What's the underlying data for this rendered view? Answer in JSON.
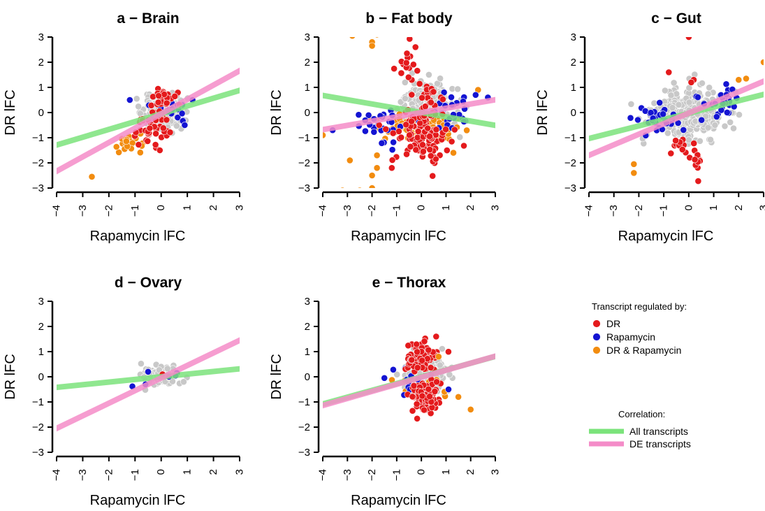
{
  "colors": {
    "DR": "#e41a1c",
    "Rapamycin": "#1414d2",
    "DR & Rapamycin": "#f28c0f",
    "Not DE": "#c8c8c8",
    "All transcripts": "#7be37b",
    "DE transcripts": "#f48cc8"
  },
  "legend": {
    "regulated_title": "Transcript regulated by:",
    "regulated_items": [
      "DR",
      "Rapamycin",
      "DR & Rapamycin"
    ],
    "correlation_title": "Correlation:",
    "correlation_items": [
      "All transcripts",
      "DE transcripts"
    ]
  },
  "chart_data": [
    {
      "type": "scatter",
      "title": "a − Brain",
      "xlabel": "Rapamycin lFC",
      "ylabel": "DR lFC",
      "xlim": [
        -4,
        3
      ],
      "ylim": [
        -3,
        3
      ],
      "xticks": [
        "−4",
        "−3",
        "−2",
        "−1",
        "0",
        "1",
        "2",
        "3"
      ],
      "yticks": [
        "−3",
        "−2",
        "−1",
        "0",
        "1",
        "2",
        "3"
      ],
      "regression_lines": [
        {
          "name": "All transcripts",
          "slope": 0.31,
          "intercept": -0.05
        },
        {
          "name": "DE transcripts",
          "slope": 0.57,
          "intercept": -0.05
        }
      ],
      "clusters": [
        {
          "group": "Not DE",
          "cx": 0.0,
          "cy": 0.0,
          "sx": 0.35,
          "sy": 0.32,
          "n": 220,
          "seed": 11
        },
        {
          "group": "DR",
          "cx": -0.35,
          "cy": -0.55,
          "sx": 0.3,
          "sy": 0.35,
          "n": 45,
          "seed": 12
        },
        {
          "group": "DR",
          "cx": 0.05,
          "cy": 0.55,
          "sx": 0.25,
          "sy": 0.18,
          "n": 25,
          "seed": 13
        },
        {
          "group": "Rapamycin",
          "cx": 0.3,
          "cy": 0.05,
          "sx": 0.45,
          "sy": 0.25,
          "n": 22,
          "seed": 14
        },
        {
          "group": "DR & Rapamycin",
          "cx": -1.2,
          "cy": -1.2,
          "sx": 0.3,
          "sy": 0.3,
          "n": 22,
          "seed": 15
        }
      ],
      "points": [
        {
          "group": "DR & Rapamycin",
          "x": -2.65,
          "y": -2.55
        },
        {
          "group": "DR",
          "x": -0.05,
          "y": -1.5
        },
        {
          "group": "Rapamycin",
          "x": -1.2,
          "y": 0.5
        },
        {
          "group": "Rapamycin",
          "x": 1.2,
          "y": 0.5
        },
        {
          "group": "Rapamycin",
          "x": 0.9,
          "y": -0.5
        }
      ]
    },
    {
      "type": "scatter",
      "title": "b − Fat body",
      "xlabel": "Rapamycin lFC",
      "ylabel": "DR lFC",
      "xlim": [
        -4,
        3
      ],
      "ylim": [
        -3,
        3
      ],
      "xticks": [
        "−4",
        "−3",
        "−2",
        "−1",
        "0",
        "1",
        "2",
        "3"
      ],
      "yticks": [
        "−3",
        "−2",
        "−1",
        "0",
        "1",
        "2",
        "3"
      ],
      "regression_lines": [
        {
          "name": "All transcripts",
          "slope": -0.17,
          "intercept": 0.0
        },
        {
          "name": "DE transcripts",
          "slope": 0.17,
          "intercept": 0.0
        }
      ],
      "clusters": [
        {
          "group": "Not DE",
          "cx": 0.2,
          "cy": 0.25,
          "sx": 0.55,
          "sy": 0.5,
          "n": 260,
          "seed": 21
        },
        {
          "group": "DR",
          "cx": 0.0,
          "cy": -0.85,
          "sx": 0.55,
          "sy": 0.5,
          "n": 110,
          "seed": 22
        },
        {
          "group": "DR",
          "cx": 0.1,
          "cy": 0.7,
          "sx": 0.35,
          "sy": 0.3,
          "n": 20,
          "seed": 23
        },
        {
          "group": "DR",
          "cx": -0.6,
          "cy": 2.0,
          "sx": 0.25,
          "sy": 0.45,
          "n": 18,
          "seed": 24
        },
        {
          "group": "DR & Rapamycin",
          "cx": 0.0,
          "cy": -0.6,
          "sx": 0.8,
          "sy": 0.3,
          "n": 90,
          "seed": 25
        },
        {
          "group": "Rapamycin",
          "cx": -1.5,
          "cy": -0.6,
          "sx": 0.7,
          "sy": 0.45,
          "n": 28,
          "seed": 26
        },
        {
          "group": "Rapamycin",
          "cx": 1.2,
          "cy": 0.0,
          "sx": 0.4,
          "sy": 0.45,
          "n": 25,
          "seed": 27
        }
      ],
      "points": [
        {
          "group": "DR & Rapamycin",
          "x": -2.8,
          "y": 3.05
        },
        {
          "group": "DR & Rapamycin",
          "x": -2.0,
          "y": 2.8
        },
        {
          "group": "DR & Rapamycin",
          "x": -2.0,
          "y": 2.65
        },
        {
          "group": "DR & Rapamycin",
          "x": -1.8,
          "y": 3.1
        },
        {
          "group": "DR & Rapamycin",
          "x": -3.2,
          "y": -3.1
        },
        {
          "group": "DR & Rapamycin",
          "x": -2.5,
          "y": -3.1
        },
        {
          "group": "DR & Rapamycin",
          "x": -2.0,
          "y": -3.0
        },
        {
          "group": "DR & Rapamycin",
          "x": -2.0,
          "y": -2.5
        },
        {
          "group": "DR & Rapamycin",
          "x": -1.8,
          "y": -2.2
        },
        {
          "group": "DR & Rapamycin",
          "x": -1.8,
          "y": -1.7
        },
        {
          "group": "DR & Rapamycin",
          "x": -2.9,
          "y": -1.9
        },
        {
          "group": "DR & Rapamycin",
          "x": -4.0,
          "y": -0.9
        },
        {
          "group": "DR & Rapamycin",
          "x": 2.3,
          "y": 0.9
        },
        {
          "group": "DR & Rapamycin",
          "x": 1.3,
          "y": -1.6
        },
        {
          "group": "Rapamycin",
          "x": -3.6,
          "y": -0.7
        },
        {
          "group": "Rapamycin",
          "x": 2.7,
          "y": 0.6
        },
        {
          "group": "Rapamycin",
          "x": 2.2,
          "y": 0.7
        },
        {
          "group": "DR",
          "x": -1.2,
          "y": -2.2
        }
      ]
    },
    {
      "type": "scatter",
      "title": "c − Gut",
      "xlabel": "Rapamycin lFC",
      "ylabel": "DR lFC",
      "xlim": [
        -4,
        3
      ],
      "ylim": [
        -3,
        3
      ],
      "xticks": [
        "−4",
        "−3",
        "−2",
        "−1",
        "0",
        "1",
        "2",
        "3"
      ],
      "yticks": [
        "−3",
        "−2",
        "−1",
        "0",
        "1",
        "2",
        "3"
      ],
      "regression_lines": [
        {
          "name": "All transcripts",
          "slope": 0.25,
          "intercept": -0.03
        },
        {
          "name": "DE transcripts",
          "slope": 0.42,
          "intercept": -0.02
        }
      ],
      "clusters": [
        {
          "group": "Not DE",
          "cx": 0.0,
          "cy": -0.05,
          "sx": 0.7,
          "sy": 0.5,
          "n": 340,
          "seed": 31
        },
        {
          "group": "Rapamycin",
          "cx": -1.2,
          "cy": -0.2,
          "sx": 0.5,
          "sy": 0.25,
          "n": 35,
          "seed": 32
        },
        {
          "group": "Rapamycin",
          "cx": 1.3,
          "cy": 0.4,
          "sx": 0.45,
          "sy": 0.3,
          "n": 30,
          "seed": 33
        },
        {
          "group": "DR",
          "cx": -0.3,
          "cy": -1.3,
          "sx": 0.4,
          "sy": 0.2,
          "n": 14,
          "seed": 34
        },
        {
          "group": "DR",
          "cx": 0.35,
          "cy": -2.0,
          "sx": 0.1,
          "sy": 0.35,
          "n": 10,
          "seed": 35
        }
      ],
      "points": [
        {
          "group": "DR",
          "x": 0.0,
          "y": 3.0
        },
        {
          "group": "DR",
          "x": -0.8,
          "y": 1.6
        },
        {
          "group": "DR",
          "x": 0.2,
          "y": 1.3
        },
        {
          "group": "DR",
          "x": 0.1,
          "y": 1.2
        },
        {
          "group": "DR & Rapamycin",
          "x": -2.2,
          "y": -2.05
        },
        {
          "group": "DR & Rapamycin",
          "x": -2.2,
          "y": -2.4
        },
        {
          "group": "DR & Rapamycin",
          "x": 2.3,
          "y": 1.35
        },
        {
          "group": "DR & Rapamycin",
          "x": 3.0,
          "y": 2.0
        },
        {
          "group": "DR & Rapamycin",
          "x": 2.0,
          "y": 1.3
        }
      ]
    },
    {
      "type": "scatter",
      "title": "d − Ovary",
      "xlabel": "Rapamycin lFC",
      "ylabel": "DR lFC",
      "xlim": [
        -4,
        3
      ],
      "ylim": [
        -3,
        3
      ],
      "xticks": [
        "−4",
        "−3",
        "−2",
        "−1",
        "0",
        "1",
        "2",
        "3"
      ],
      "yticks": [
        "−3",
        "−2",
        "−1",
        "0",
        "1",
        "2",
        "3"
      ],
      "regression_lines": [
        {
          "name": "All transcripts",
          "slope": 0.105,
          "intercept": -0.0
        },
        {
          "name": "DE transcripts",
          "slope": 0.5,
          "intercept": -0.05
        }
      ],
      "clusters": [
        {
          "group": "Not DE",
          "cx": 0.0,
          "cy": 0.05,
          "sx": 0.3,
          "sy": 0.17,
          "n": 150,
          "seed": 41
        }
      ],
      "points": [
        {
          "group": "Rapamycin",
          "x": -1.1,
          "y": -0.38
        },
        {
          "group": "Rapamycin",
          "x": -0.5,
          "y": 0.2
        },
        {
          "group": "Rapamycin",
          "x": -0.6,
          "y": -0.3
        },
        {
          "group": "Rapamycin",
          "x": 0.6,
          "y": 0.15
        },
        {
          "group": "Rapamycin",
          "x": 0.55,
          "y": 0.05
        },
        {
          "group": "Rapamycin",
          "x": 0.3,
          "y": 0.0
        },
        {
          "group": "DR",
          "x": 0.05,
          "y": 0.1
        }
      ]
    },
    {
      "type": "scatter",
      "title": "e − Thorax",
      "xlabel": "Rapamycin lFC",
      "ylabel": "DR lFC",
      "xlim": [
        -4,
        3
      ],
      "ylim": [
        -3,
        3
      ],
      "xticks": [
        "−4",
        "−3",
        "−2",
        "−1",
        "0",
        "1",
        "2",
        "3"
      ],
      "yticks": [
        "−3",
        "−2",
        "−1",
        "0",
        "1",
        "2",
        "3"
      ],
      "regression_lines": [
        {
          "name": "All transcripts",
          "slope": 0.27,
          "intercept": 0.0
        },
        {
          "name": "DE transcripts",
          "slope": 0.28,
          "intercept": -0.02
        }
      ],
      "clusters": [
        {
          "group": "Not DE",
          "cx": 0.1,
          "cy": 0.05,
          "sx": 0.4,
          "sy": 0.4,
          "n": 230,
          "seed": 51
        },
        {
          "group": "DR",
          "cx": 0.1,
          "cy": 0.8,
          "sx": 0.3,
          "sy": 0.3,
          "n": 75,
          "seed": 52
        },
        {
          "group": "DR",
          "cx": 0.1,
          "cy": -0.8,
          "sx": 0.3,
          "sy": 0.3,
          "n": 85,
          "seed": 53
        },
        {
          "group": "Rapamycin",
          "cx": -0.2,
          "cy": -0.2,
          "sx": 0.6,
          "sy": 0.35,
          "n": 18,
          "seed": 54
        },
        {
          "group": "DR & Rapamycin",
          "cx": -0.3,
          "cy": -0.6,
          "sx": 0.7,
          "sy": 0.35,
          "n": 14,
          "seed": 55
        }
      ],
      "points": [
        {
          "group": "DR & Rapamycin",
          "x": 2.0,
          "y": -1.3
        },
        {
          "group": "DR & Rapamycin",
          "x": 1.5,
          "y": -0.8
        },
        {
          "group": "DR & Rapamycin",
          "x": 0.7,
          "y": 0.8
        },
        {
          "group": "Rapamycin",
          "x": 1.1,
          "y": -0.5
        },
        {
          "group": "Rapamycin",
          "x": -1.5,
          "y": -0.05
        },
        {
          "group": "DR",
          "x": 0.6,
          "y": 1.6
        }
      ]
    }
  ]
}
